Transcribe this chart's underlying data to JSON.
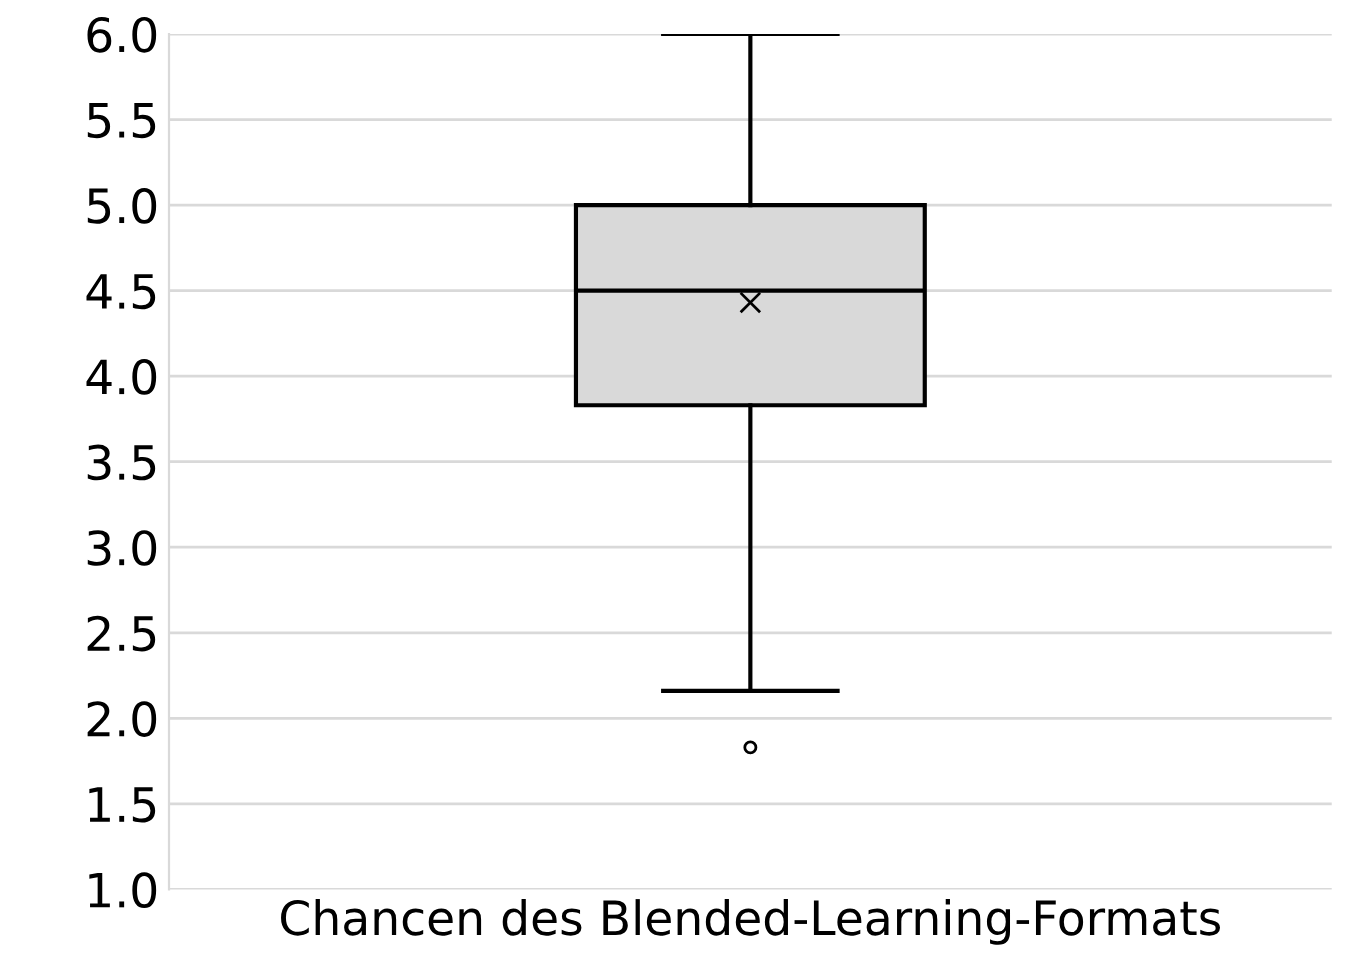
{
  "chart_data": {
    "type": "box",
    "categories": [
      "Chancen des Blended-Learning-Formats"
    ],
    "boxes": [
      {
        "low": 2.16,
        "q1": 3.83,
        "median": 4.5,
        "q3": 5.0,
        "high": 6.0,
        "mean": 4.43,
        "outliers": [
          1.83
        ]
      }
    ],
    "color": "#d9d9d9",
    "ylim": [
      1.0,
      6.0
    ],
    "yticks": [
      {
        "value": 1.0,
        "label": "1.0"
      },
      {
        "value": 1.5,
        "label": "1.5"
      },
      {
        "value": 2.0,
        "label": "2.0"
      },
      {
        "value": 2.5,
        "label": "2.5"
      },
      {
        "value": 3.0,
        "label": "3.0"
      },
      {
        "value": 3.5,
        "label": "3.5"
      },
      {
        "value": 4.0,
        "label": "4.0"
      },
      {
        "value": 4.5,
        "label": "4.5"
      },
      {
        "value": 5.0,
        "label": "5.0"
      },
      {
        "value": 5.5,
        "label": "5.5"
      },
      {
        "value": 6.0,
        "label": "6.0"
      }
    ],
    "grid": "y"
  }
}
